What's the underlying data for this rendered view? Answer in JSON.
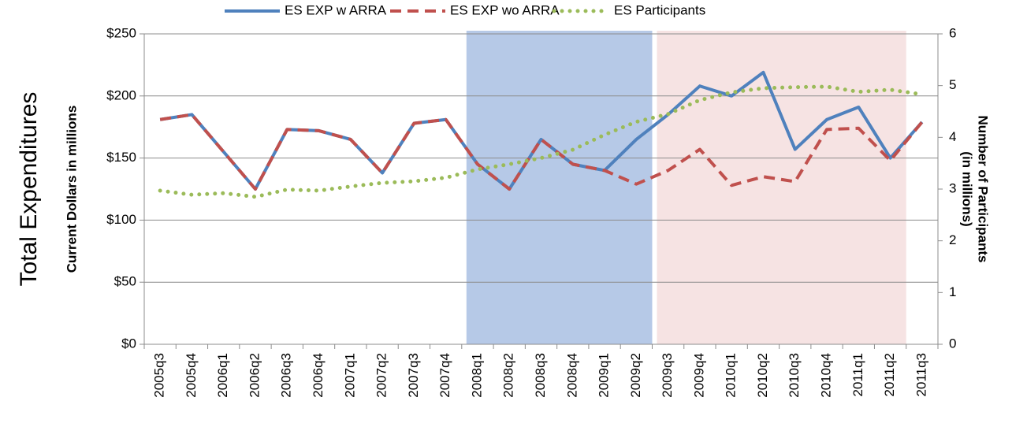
{
  "chart_data": {
    "type": "line",
    "y_title": "Total Expenditures",
    "ylabel": "Current Dollars in millions",
    "y2label": [
      "Number of Participants",
      "(in millions)"
    ],
    "categories": [
      "2005q3",
      "2005q4",
      "2006q1",
      "2006q2",
      "2006q3",
      "2006q4",
      "2007q1",
      "2007q2",
      "2007q3",
      "2007q4",
      "2008q1",
      "2008q2",
      "2008q3",
      "2008q4",
      "2009q1",
      "2009q2",
      "2009q3",
      "2009q4",
      "2010q1",
      "2010q2",
      "2010q3",
      "2010q4",
      "2011q1",
      "2011q2",
      "2011q3"
    ],
    "series": [
      {
        "name": "ES EXP w ARRA",
        "color": "#4f81bd",
        "style": "solid",
        "values": [
          181,
          185,
          155,
          125,
          173,
          172,
          165,
          138,
          178,
          181,
          145,
          125,
          165,
          145,
          140,
          165,
          185,
          208,
          200,
          219,
          157,
          181,
          191,
          150,
          179
        ]
      },
      {
        "name": "ES EXP wo ARRA",
        "color": "#c0504d",
        "style": "dashed",
        "values": [
          181,
          185,
          155,
          125,
          173,
          172,
          165,
          138,
          178,
          181,
          145,
          125,
          165,
          145,
          140,
          129,
          140,
          157,
          128,
          135,
          131,
          173,
          174,
          148,
          179
        ]
      },
      {
        "name": "ES Participants",
        "color": "#9bbb59",
        "style": "dotted",
        "axis": "y2",
        "values": [
          2.97,
          2.89,
          2.92,
          2.85,
          2.99,
          2.97,
          3.05,
          3.12,
          3.15,
          3.22,
          3.38,
          3.48,
          3.6,
          3.76,
          4.05,
          4.3,
          4.45,
          4.72,
          4.87,
          4.95,
          4.97,
          4.98,
          4.88,
          4.92,
          4.83
        ]
      }
    ],
    "shaded_periods": [
      {
        "from": "2008q1",
        "to": "2009q2",
        "color": "#a9c0e3"
      },
      {
        "from": "2009q3",
        "to": "2011q2",
        "color": "#f4dede"
      }
    ],
    "ylim": [
      0,
      250
    ],
    "yticks": [
      {
        "value": 0,
        "label": "$0"
      },
      {
        "value": 50,
        "label": "$50"
      },
      {
        "value": 100,
        "label": "$100"
      },
      {
        "value": 150,
        "label": "$150"
      },
      {
        "value": 200,
        "label": "$200"
      },
      {
        "value": 250,
        "label": "$250"
      }
    ],
    "y2lim": [
      0,
      6
    ],
    "y2ticks": [
      0,
      1,
      2,
      3,
      4,
      5,
      6
    ],
    "grid": true,
    "legend": "top"
  }
}
